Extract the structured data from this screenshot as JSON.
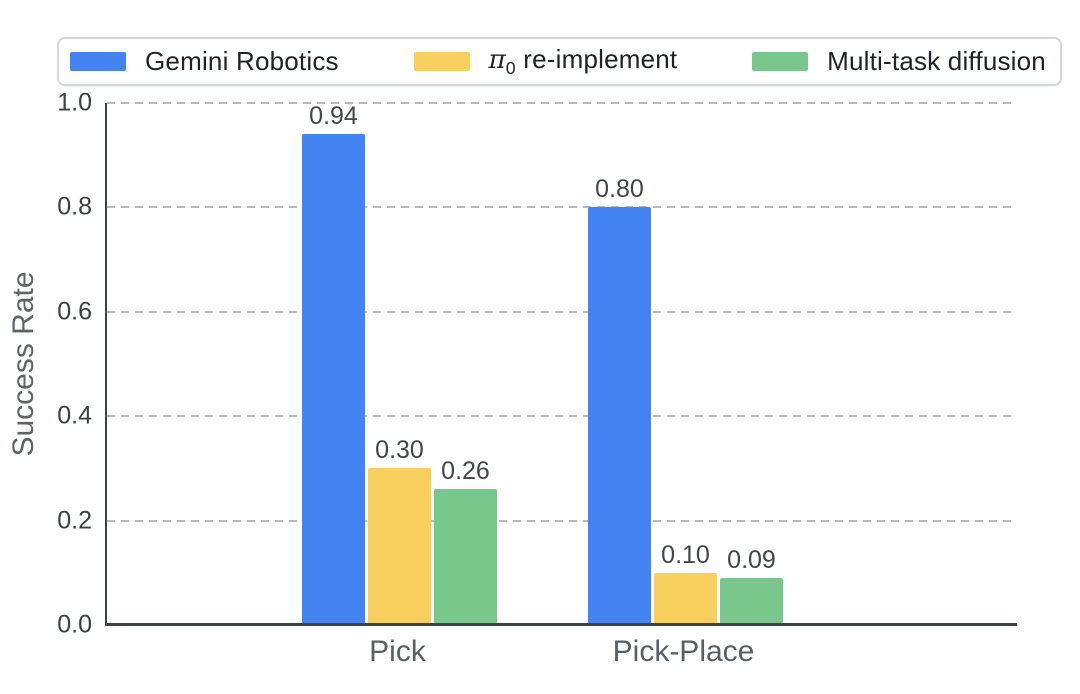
{
  "legend": {
    "items": [
      {
        "label": "Gemini Robotics",
        "color": "#4484F2"
      },
      {
        "label_pi": "π",
        "label_sub": "0",
        "label_rest": " re-implement",
        "color": "#F9D05E"
      },
      {
        "label": "Multi-task diffusion",
        "color": "#7AC78C"
      }
    ]
  },
  "chart_data": {
    "type": "bar",
    "categories": [
      "Pick",
      "Pick-Place"
    ],
    "series": [
      {
        "name": "Gemini Robotics",
        "color": "#4484F2",
        "values": [
          0.94,
          0.8
        ]
      },
      {
        "name": "π₀ re-implement",
        "color": "#F9D05E",
        "values": [
          0.3,
          0.1
        ]
      },
      {
        "name": "Multi-task diffusion",
        "color": "#7AC78C",
        "values": [
          0.26,
          0.09
        ]
      }
    ],
    "value_labels": [
      [
        "0.94",
        "0.30",
        "0.26"
      ],
      [
        "0.80",
        "0.10",
        "0.09"
      ]
    ],
    "ylabel": "Success Rate",
    "xlabel": "",
    "ylim": [
      0.0,
      1.0
    ],
    "yticks": [
      0.0,
      0.2,
      0.4,
      0.6,
      0.8,
      1.0
    ],
    "ytick_labels": [
      "0.0",
      "0.2",
      "0.4",
      "0.6",
      "0.8",
      "1.0"
    ],
    "grid": "horizontal-dashed",
    "legend_position": "top",
    "colors": {
      "axis": "#3e4347",
      "gridline": "#b7babd",
      "tick_text": "#3c4043",
      "category_text": "#5a5f64",
      "value_text": "#43474b"
    }
  }
}
